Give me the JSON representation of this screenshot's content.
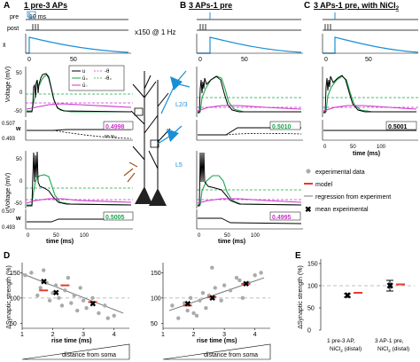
{
  "panelA": {
    "letter": "A",
    "title": "1 pre-3 APs",
    "pre_label": "pre",
    "post_label": "post",
    "scale_label": "10 ms",
    "xbar_label": "x̄",
    "xtick0": "0",
    "xtick1": "50",
    "repeat_label": "x150 @ 1 Hz",
    "voltage_label": "Voltage (mV)",
    "w_label": "w",
    "top_trace": {
      "y_ticks": [
        "50",
        "0",
        "-50"
      ],
      "w_ticks": [
        "0.507",
        "0.493"
      ],
      "w_value": "0.4998",
      "legend": {
        "u": "u",
        "minus_theta": "-θ",
        "ubar_plus": "ū₊",
        "theta_plus": "-θ₊",
        "ubar_minus": "ū₋",
        "no_w_label": "no wₓₒ"
      }
    },
    "bottom_trace": {
      "y_ticks": [
        "50",
        "0",
        "-50"
      ],
      "w_ticks": [
        "0.507",
        "0.493"
      ],
      "w_value": "0.5005",
      "x_ticks": [
        "0",
        "50",
        "100"
      ],
      "xlabel": "time (ms)"
    }
  },
  "panelB": {
    "letter": "B",
    "title": "3 APs-1 pre",
    "xtick0": "0",
    "xtick1": "50",
    "top_trace": {
      "y_ticks": [
        "50",
        "0",
        "-50"
      ],
      "w_ticks": [
        "0.507",
        "0.493"
      ],
      "w_value": "0.5010"
    },
    "bottom_trace": {
      "y_ticks": [
        "50",
        "0",
        "-50"
      ],
      "w_ticks": [
        "0.507",
        "0.493"
      ],
      "w_value": "0.4995",
      "x_ticks": [
        "0",
        "50",
        "100"
      ],
      "xlabel": "time (ms)"
    }
  },
  "panelC": {
    "letter": "C",
    "title": "3 APs-1 pre, with NiCl",
    "title_sub": "2",
    "xtick0": "0",
    "xtick1": "50",
    "y_ticks": [
      "50",
      "0",
      "-50"
    ],
    "w_ticks": [
      "0.507",
      "0.493"
    ],
    "w_value": "0.5001",
    "x_ticks": [
      "0",
      "50",
      "100"
    ],
    "xlabel": "time (ms)"
  },
  "neuron": {
    "l23_label": "L2/3",
    "l5_label": "L5"
  },
  "panelD": {
    "letter": "D",
    "ylabel": "ΔSynaptic strength (%)",
    "xlabel": "rise time (ms)",
    "distance_label": "distance from soma",
    "colors": {
      "data": "#aaaaaa",
      "model": "#e8392b",
      "regression": "#777777",
      "mean": "#000000",
      "baseline": "#aaaaaa"
    }
  },
  "legend": {
    "experimental": "experimental data",
    "model": "model",
    "regression": "regression from experiment",
    "mean": "mean experimental"
  },
  "panelE": {
    "letter": "E",
    "ylabel": "ΔSynaptic strength (%)",
    "y_ticks": [
      "150",
      "100",
      "50",
      "0"
    ],
    "cat1_line1": "1 pre-3 AP,",
    "cat1_line2": "NiCl",
    "cat1_line2_sub": "2",
    "cat1_line2_tail": " (distal)",
    "cat2_line1": "3 AP-1 pre,",
    "cat2_line2": "NiCl",
    "cat2_line2_sub": "2",
    "cat2_line2_tail": " (distal)"
  },
  "colors": {
    "blue": "#1a8fd6",
    "green": "#1aa64a",
    "magenta": "#cc33cc",
    "black": "#000000",
    "grey": "#888888"
  },
  "chart_data": [
    {
      "type": "scatter",
      "panel": "D-left",
      "xlabel": "rise time (ms)",
      "ylabel": "ΔSynaptic strength (%)",
      "xlim": [
        1,
        4.5
      ],
      "ylim": [
        40,
        170
      ],
      "x_ticks": [
        1,
        2,
        3,
        4
      ],
      "y_ticks": [
        50,
        100,
        150
      ],
      "baseline": 100,
      "series": [
        {
          "name": "experimental data",
          "x": [
            1.1,
            1.3,
            1.5,
            1.6,
            1.8,
            1.9,
            2.0,
            2.1,
            2.2,
            2.3,
            2.4,
            2.6,
            2.7,
            2.8,
            3.0,
            3.1,
            3.3,
            3.5,
            3.7,
            3.8,
            4.0,
            1.7,
            2.5,
            2.9
          ],
          "y": [
            145,
            150,
            105,
            120,
            130,
            95,
            110,
            125,
            100,
            85,
            115,
            90,
            105,
            75,
            95,
            80,
            100,
            70,
            85,
            60,
            65,
            155,
            140,
            120
          ]
        },
        {
          "name": "model",
          "x": [
            1.7,
            2.4,
            3.3
          ],
          "y": [
            115,
            125,
            92
          ]
        },
        {
          "name": "mean experimental",
          "x": [
            1.7,
            2.1,
            3.3
          ],
          "y": [
            132,
            110,
            88
          ]
        }
      ],
      "regression": {
        "x": [
          1.0,
          4.3
        ],
        "y": [
          148,
          70
        ]
      }
    },
    {
      "type": "scatter",
      "panel": "D-right",
      "xlabel": "rise time (ms)",
      "xlim": [
        1,
        4.5
      ],
      "ylim": [
        40,
        170
      ],
      "x_ticks": [
        1,
        2,
        3,
        4
      ],
      "y_ticks": [
        50,
        100,
        150
      ],
      "baseline": 100,
      "series": [
        {
          "name": "experimental data",
          "x": [
            1.3,
            1.5,
            1.7,
            1.8,
            1.9,
            2.0,
            2.2,
            2.3,
            2.4,
            2.5,
            2.7,
            2.9,
            3.0,
            3.2,
            3.4,
            3.5,
            3.6,
            3.8,
            4.0,
            4.2,
            2.1,
            2.6
          ],
          "y": [
            85,
            60,
            90,
            75,
            100,
            70,
            95,
            110,
            80,
            105,
            120,
            95,
            125,
            115,
            140,
            135,
            100,
            130,
            145,
            150,
            65,
            160
          ]
        },
        {
          "name": "model",
          "x": [
            1.8,
            2.6,
            3.7
          ],
          "y": [
            85,
            102,
            128
          ]
        },
        {
          "name": "mean experimental",
          "x": [
            1.8,
            2.6,
            3.7
          ],
          "y": [
            88,
            100,
            128
          ]
        }
      ],
      "regression": {
        "x": [
          1.2,
          4.3
        ],
        "y": [
          75,
          140
        ]
      }
    },
    {
      "type": "scatter",
      "panel": "E",
      "ylabel": "ΔSynaptic strength (%)",
      "categories": [
        "1 pre-3 AP, NiCl2 (distal)",
        "3 AP-1 pre, NiCl2 (distal)"
      ],
      "ylim": [
        0,
        160
      ],
      "y_ticks": [
        0,
        50,
        100,
        150
      ],
      "baseline": 100,
      "series": [
        {
          "name": "mean experimental",
          "values": [
            78,
            100
          ],
          "error": [
            4,
            12
          ]
        },
        {
          "name": "model",
          "values": [
            84,
            103
          ]
        }
      ]
    }
  ]
}
